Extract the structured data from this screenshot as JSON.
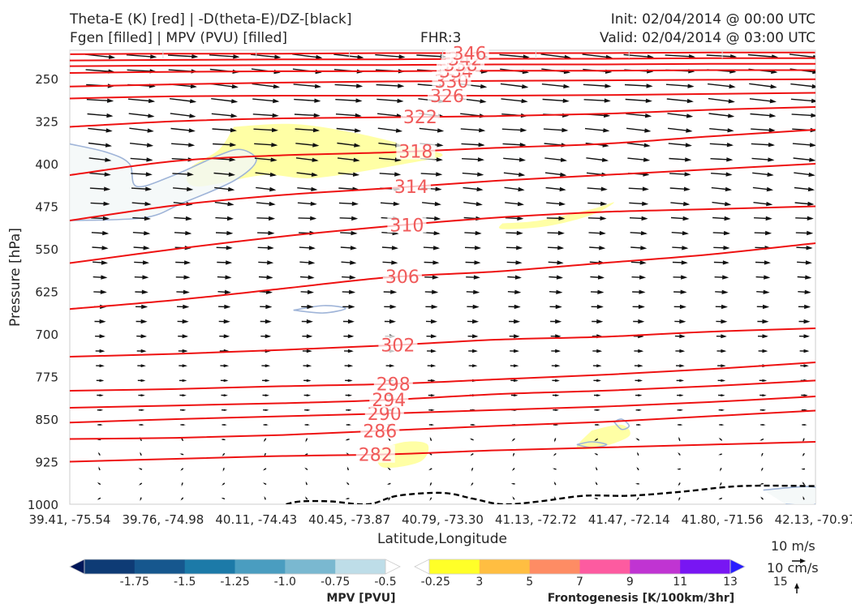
{
  "header": {
    "title_line1": "Theta-E (K) [red] | -D(theta-E)/DZ-[black]",
    "title_line2": "Fgen [filled] | MPV (PVU) [filled]",
    "fhr": "FHR:3",
    "init": "Init: 02/04/2014 @ 00:00 UTC",
    "valid": "Valid: 02/04/2014 @ 03:00 UTC"
  },
  "chart_data": {
    "type": "cross-section",
    "xlabel": "Latitude,Longitude",
    "ylabel": "Pressure [hPa]",
    "x_ticks": [
      "39.41, -75.54",
      "39.76, -74.98",
      "40.11, -74.43",
      "40.45, -73.87",
      "40.79, -73.30",
      "41.13, -72.72",
      "41.47, -72.14",
      "41.80, -71.56",
      "42.13, -70.97"
    ],
    "y_ticks": [
      250,
      325,
      400,
      475,
      550,
      625,
      700,
      775,
      850,
      925,
      1000
    ],
    "ylim": [
      1000,
      200
    ],
    "colors": {
      "theta_e": "#ee1111",
      "theta_e_label": "#f05a5a",
      "mpv_contour": "#9fb4d8",
      "wind": "#111111"
    },
    "theta_e_contours": [
      {
        "value": 282,
        "label": "282",
        "ys": [
          925,
          920,
          915,
          912,
          905,
          900,
          895,
          890
        ]
      },
      {
        "value": 286,
        "label": "286",
        "ys": [
          885,
          883,
          878,
          870,
          862,
          855,
          845,
          835
        ]
      },
      {
        "value": 290,
        "label": "290",
        "ys": [
          856,
          850,
          845,
          840,
          834,
          828,
          820,
          810
        ]
      },
      {
        "value": 294,
        "label": "294",
        "ys": [
          830,
          826,
          822,
          816,
          806,
          800,
          792,
          782
        ]
      },
      {
        "value": 298,
        "label": "298",
        "ys": [
          800,
          797,
          792,
          788,
          780,
          772,
          762,
          750
        ]
      },
      {
        "value": 302,
        "label": "302",
        "ys": [
          740,
          735,
          728,
          720,
          710,
          705,
          696,
          690
        ]
      },
      {
        "value": 306,
        "label": "306",
        "ys": [
          656,
          640,
          620,
          600,
          590,
          575,
          560,
          540
        ]
      },
      {
        "value": 310,
        "label": "310",
        "ys": [
          575,
          550,
          528,
          510,
          495,
          485,
          480,
          475
        ]
      },
      {
        "value": 314,
        "label": "314",
        "ys": [
          500,
          473,
          455,
          443,
          430,
          420,
          410,
          400
        ]
      },
      {
        "value": 318,
        "label": "318",
        "ys": [
          420,
          395,
          385,
          380,
          372,
          365,
          352,
          340
        ]
      },
      {
        "value": 322,
        "label": "322",
        "ys": [
          335,
          325,
          320,
          318,
          316,
          312,
          305,
          300
        ]
      },
      {
        "value": 326,
        "label": "326",
        "ys": [
          285,
          281,
          280,
          280,
          280,
          279,
          277,
          275
        ]
      },
      {
        "value": 330,
        "label": "330",
        "ys": [
          264,
          260,
          257,
          255,
          254,
          253,
          252,
          251
        ]
      },
      {
        "value": 334,
        "label": "334",
        "ys": [
          240,
          238,
          237,
          237,
          236,
          236,
          235,
          235
        ]
      },
      {
        "value": 338,
        "label": "338",
        "ys": [
          228,
          227,
          226,
          226,
          225,
          225,
          224,
          224
        ]
      },
      {
        "value": 342,
        "label": "342",
        "ys": [
          218,
          217,
          216,
          216,
          215,
          215,
          214,
          214
        ]
      },
      {
        "value": 346,
        "label": "346",
        "ys": [
          207,
          206,
          206,
          205,
          205,
          205,
          204,
          204
        ]
      }
    ],
    "fgen_regions": [
      {
        "value": 3,
        "points": [
          [
            0.22,
            335
          ],
          [
            0.3,
            330
          ],
          [
            0.38,
            345
          ],
          [
            0.46,
            370
          ],
          [
            0.5,
            385
          ],
          [
            0.45,
            400
          ],
          [
            0.33,
            425
          ],
          [
            0.26,
            420
          ],
          [
            0.17,
            440
          ],
          [
            0.16,
            410
          ],
          [
            0.2,
            375
          ]
        ]
      },
      {
        "value": 3,
        "points": [
          [
            0.58,
            505
          ],
          [
            0.63,
            500
          ],
          [
            0.7,
            480
          ],
          [
            0.73,
            468
          ],
          [
            0.7,
            490
          ],
          [
            0.64,
            510
          ],
          [
            0.58,
            515
          ]
        ]
      },
      {
        "value": 3,
        "points": [
          [
            0.41,
            905
          ],
          [
            0.45,
            890
          ],
          [
            0.48,
            895
          ],
          [
            0.47,
            925
          ],
          [
            0.42,
            935
          ]
        ]
      },
      {
        "value": 3,
        "points": [
          [
            0.7,
            870
          ],
          [
            0.74,
            860
          ],
          [
            0.75,
            880
          ],
          [
            0.71,
            900
          ],
          [
            0.68,
            900
          ]
        ]
      }
    ],
    "mpv_contours": [
      {
        "closed": false,
        "points": [
          [
            0.0,
            365
          ],
          [
            0.05,
            380
          ],
          [
            0.08,
            400
          ],
          [
            0.09,
            440
          ],
          [
            0.14,
            420
          ],
          [
            0.2,
            385
          ],
          [
            0.23,
            375
          ],
          [
            0.25,
            395
          ],
          [
            0.22,
            430
          ],
          [
            0.15,
            470
          ],
          [
            0.1,
            495
          ],
          [
            0.0,
            500
          ]
        ]
      },
      {
        "closed": true,
        "points": [
          [
            0.3,
            658
          ],
          [
            0.34,
            650
          ],
          [
            0.37,
            655
          ],
          [
            0.34,
            663
          ]
        ]
      },
      {
        "closed": true,
        "points": [
          [
            0.68,
            895
          ],
          [
            0.7,
            890
          ],
          [
            0.72,
            895
          ],
          [
            0.7,
            900
          ]
        ]
      },
      {
        "closed": true,
        "points": [
          [
            0.73,
            855
          ],
          [
            0.74,
            850
          ],
          [
            0.75,
            862
          ],
          [
            0.74,
            868
          ]
        ]
      },
      {
        "closed": false,
        "points": [
          [
            0.96,
            1000
          ],
          [
            1.0,
            1000
          ],
          [
            1.0,
            970
          ],
          [
            0.93,
            975
          ]
        ]
      }
    ],
    "dashed_contour": {
      "points": [
        [
          0.29,
          1000
        ],
        [
          0.31,
          995
        ],
        [
          0.35,
          995
        ],
        [
          0.4,
          1000
        ],
        [
          0.44,
          985
        ],
        [
          0.5,
          980
        ],
        [
          0.54,
          990
        ],
        [
          0.58,
          1000
        ],
        [
          0.63,
          995
        ],
        [
          0.69,
          985
        ],
        [
          0.75,
          985
        ],
        [
          0.82,
          978
        ],
        [
          0.9,
          968
        ],
        [
          1.0,
          968
        ]
      ]
    },
    "mpv_colorbar": {
      "label": "MPV [PVU]",
      "colors": [
        "#00175a",
        "#0e3b75",
        "#16578e",
        "#1c7aa8",
        "#4a9dc0",
        "#7ab8d0",
        "#bedde8",
        "#ffffff"
      ],
      "ticks": [
        "-1.75",
        "-1.5",
        "-1.25",
        "-1.0",
        "-0.75",
        "-0.5",
        "-0.25"
      ]
    },
    "fgen_colorbar": {
      "label": "Frontogenesis [K/100km/3hr]",
      "colors": [
        "#ffffff",
        "#ffff28",
        "#ffbe41",
        "#fe8c64",
        "#fd5ba0",
        "#c034d2",
        "#7816f3",
        "#2a1fff"
      ],
      "ticks": [
        "3",
        "5",
        "7",
        "9",
        "11",
        "13",
        "15"
      ]
    },
    "wind_key": {
      "horizontal": "10 m/s",
      "vertical": "10 cm/s"
    }
  }
}
